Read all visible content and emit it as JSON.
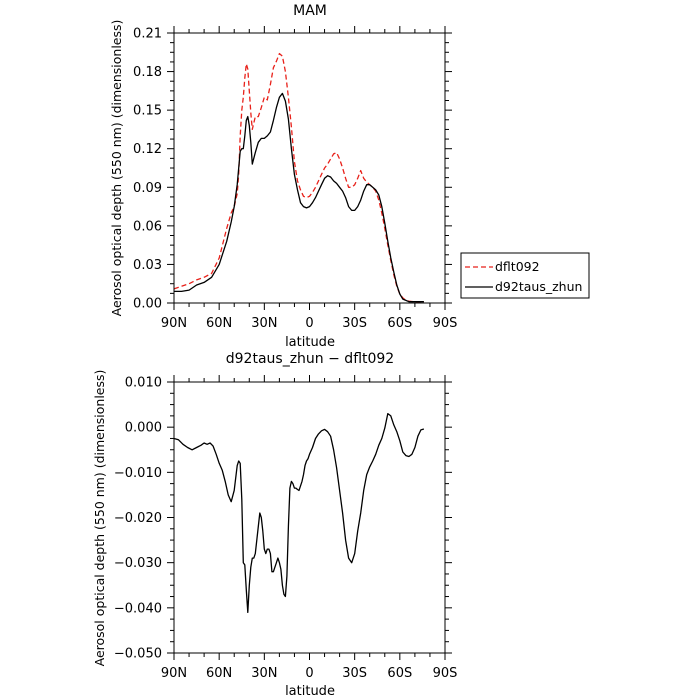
{
  "chart_data": [
    {
      "type": "line",
      "title": "MAM",
      "xlabel": "latitude",
      "ylabel": "Aerosol optical depth (550 nm) (dimensionless)",
      "xlim": [
        90,
        -90
      ],
      "ylim": [
        0,
        0.21
      ],
      "xticks": [
        90,
        60,
        30,
        0,
        -30,
        -60,
        -90
      ],
      "xtick_labels": [
        "90N",
        "60N",
        "30N",
        "0",
        "30S",
        "60S",
        "90S"
      ],
      "yticks": [
        0,
        0.03,
        0.06,
        0.09,
        0.12,
        0.15,
        0.18,
        0.21
      ],
      "ytick_labels": [
        "0.00",
        "0.03",
        "0.06",
        "0.09",
        "0.12",
        "0.15",
        "0.18",
        "0.21"
      ],
      "legend_position": "right",
      "series": [
        {
          "name": "dflt092",
          "color": "#e8211a",
          "dash": "dashed",
          "x": [
            90,
            85,
            80,
            75,
            70,
            65,
            60,
            55,
            52,
            50,
            48,
            47,
            46,
            45,
            44,
            43,
            42,
            41,
            40,
            39,
            38,
            36,
            34,
            32,
            30,
            28,
            26,
            24,
            22,
            20,
            18,
            16,
            14,
            12,
            10,
            8,
            6,
            4,
            2,
            0,
            -2,
            -4,
            -6,
            -8,
            -10,
            -12,
            -14,
            -16,
            -18,
            -20,
            -22,
            -24,
            -26,
            -28,
            -30,
            -32,
            -34,
            -36,
            -38,
            -40,
            -42,
            -44,
            -46,
            -48,
            -50,
            -52,
            -54,
            -56,
            -58,
            -60,
            -62,
            -64,
            -66,
            -68,
            -70,
            -72,
            -74,
            -76
          ],
          "values": [
            0.011,
            0.013,
            0.015,
            0.018,
            0.02,
            0.023,
            0.035,
            0.058,
            0.07,
            0.075,
            0.085,
            0.1,
            0.13,
            0.15,
            0.16,
            0.175,
            0.186,
            0.182,
            0.165,
            0.148,
            0.135,
            0.145,
            0.145,
            0.152,
            0.16,
            0.158,
            0.17,
            0.183,
            0.188,
            0.194,
            0.192,
            0.18,
            0.16,
            0.137,
            0.11,
            0.095,
            0.088,
            0.083,
            0.082,
            0.083,
            0.086,
            0.09,
            0.095,
            0.1,
            0.105,
            0.108,
            0.112,
            0.116,
            0.117,
            0.112,
            0.105,
            0.097,
            0.09,
            0.09,
            0.092,
            0.097,
            0.103,
            0.097,
            0.094,
            0.092,
            0.09,
            0.087,
            0.08,
            0.07,
            0.058,
            0.045,
            0.033,
            0.022,
            0.013,
            0.007,
            0.004,
            0.002,
            0.0015,
            0.0012,
            0.001,
            0.001,
            0.001,
            0.001
          ]
        },
        {
          "name": "d92taus_zhun",
          "color": "#000000",
          "dash": "solid",
          "x": [
            90,
            85,
            80,
            75,
            70,
            65,
            60,
            55,
            52,
            50,
            48,
            47,
            46,
            45,
            44,
            43,
            42,
            41,
            40,
            39,
            38,
            36,
            34,
            32,
            30,
            28,
            26,
            24,
            22,
            20,
            18,
            16,
            14,
            12,
            10,
            8,
            6,
            4,
            2,
            0,
            -2,
            -4,
            -6,
            -8,
            -10,
            -12,
            -14,
            -16,
            -18,
            -20,
            -22,
            -24,
            -26,
            -28,
            -30,
            -32,
            -34,
            -36,
            -38,
            -40,
            -42,
            -44,
            -46,
            -48,
            -50,
            -52,
            -54,
            -56,
            -58,
            -60,
            -62,
            -64,
            -66,
            -68,
            -70,
            -72,
            -74,
            -76
          ],
          "values": [
            0.009,
            0.009,
            0.01,
            0.014,
            0.016,
            0.02,
            0.03,
            0.048,
            0.063,
            0.075,
            0.092,
            0.105,
            0.118,
            0.12,
            0.12,
            0.13,
            0.142,
            0.145,
            0.138,
            0.125,
            0.108,
            0.117,
            0.125,
            0.128,
            0.128,
            0.13,
            0.133,
            0.142,
            0.152,
            0.16,
            0.163,
            0.157,
            0.143,
            0.12,
            0.1,
            0.088,
            0.078,
            0.075,
            0.074,
            0.075,
            0.078,
            0.082,
            0.087,
            0.092,
            0.097,
            0.099,
            0.098,
            0.095,
            0.093,
            0.09,
            0.087,
            0.082,
            0.075,
            0.072,
            0.072,
            0.075,
            0.08,
            0.087,
            0.092,
            0.092,
            0.09,
            0.088,
            0.084,
            0.075,
            0.062,
            0.048,
            0.035,
            0.024,
            0.014,
            0.007,
            0.003,
            0.002,
            0.001,
            0.001,
            0.001,
            0.001,
            0.001,
            0.001
          ]
        }
      ]
    },
    {
      "type": "line",
      "title": "d92taus_zhun − dflt092",
      "xlabel": "latitude",
      "ylabel": "Aerosol optical depth (550 nm) (dimensionless)",
      "xlim": [
        90,
        -90
      ],
      "ylim": [
        -0.05,
        0.01
      ],
      "xticks": [
        90,
        60,
        30,
        0,
        -30,
        -60,
        -90
      ],
      "xtick_labels": [
        "90N",
        "60N",
        "30N",
        "0",
        "30S",
        "60S",
        "90S"
      ],
      "yticks": [
        -0.05,
        -0.04,
        -0.03,
        -0.02,
        -0.01,
        0.0,
        0.01
      ],
      "ytick_labels": [
        "−0.050",
        "−0.040",
        "−0.030",
        "−0.020",
        "−0.010",
        "0.000",
        "0.010"
      ],
      "series": [
        {
          "color": "#000000",
          "dash": "solid",
          "x": [
            90,
            87,
            84,
            81,
            78,
            75,
            72,
            70,
            68,
            66,
            64,
            62,
            60,
            58,
            56,
            54,
            52,
            50,
            48,
            47,
            46,
            45,
            44,
            43,
            42,
            41,
            40,
            39,
            38,
            37,
            36,
            35,
            34,
            33,
            32,
            31,
            30,
            29,
            28,
            27,
            26,
            25,
            24,
            23,
            22,
            21,
            20,
            19,
            18,
            17,
            16,
            15,
            14,
            13,
            12,
            11,
            10,
            9,
            8,
            7,
            6,
            5,
            4,
            3,
            2,
            1,
            0,
            -2,
            -4,
            -6,
            -8,
            -10,
            -12,
            -14,
            -16,
            -18,
            -20,
            -22,
            -24,
            -26,
            -28,
            -30,
            -32,
            -34,
            -36,
            -38,
            -40,
            -42,
            -44,
            -46,
            -48,
            -50,
            -52,
            -54,
            -56,
            -58,
            -60,
            -62,
            -64,
            -66,
            -68,
            -70,
            -72,
            -74,
            -76
          ],
          "values": [
            -0.0025,
            -0.0028,
            -0.0038,
            -0.0045,
            -0.005,
            -0.0045,
            -0.004,
            -0.0035,
            -0.0038,
            -0.0035,
            -0.0042,
            -0.006,
            -0.008,
            -0.0095,
            -0.012,
            -0.015,
            -0.0165,
            -0.014,
            -0.0085,
            -0.0075,
            -0.008,
            -0.016,
            -0.03,
            -0.0305,
            -0.036,
            -0.041,
            -0.035,
            -0.031,
            -0.029,
            -0.029,
            -0.028,
            -0.025,
            -0.022,
            -0.019,
            -0.02,
            -0.023,
            -0.027,
            -0.028,
            -0.027,
            -0.027,
            -0.028,
            -0.032,
            -0.032,
            -0.031,
            -0.03,
            -0.029,
            -0.03,
            -0.0315,
            -0.035,
            -0.037,
            -0.0375,
            -0.033,
            -0.022,
            -0.0135,
            -0.012,
            -0.0125,
            -0.0135,
            -0.0135,
            -0.0138,
            -0.014,
            -0.013,
            -0.012,
            -0.0105,
            -0.0085,
            -0.0075,
            -0.007,
            -0.006,
            -0.0045,
            -0.0025,
            -0.0015,
            -0.0008,
            -0.0005,
            -0.001,
            -0.002,
            -0.005,
            -0.009,
            -0.014,
            -0.019,
            -0.025,
            -0.029,
            -0.03,
            -0.028,
            -0.023,
            -0.019,
            -0.014,
            -0.0105,
            -0.0088,
            -0.0075,
            -0.006,
            -0.004,
            -0.0025,
            -0.0002,
            0.003,
            0.0025,
            0.0005,
            -0.001,
            -0.003,
            -0.0055,
            -0.0063,
            -0.0065,
            -0.006,
            -0.0045,
            -0.002,
            -0.0006,
            -0.0004
          ]
        }
      ]
    }
  ]
}
